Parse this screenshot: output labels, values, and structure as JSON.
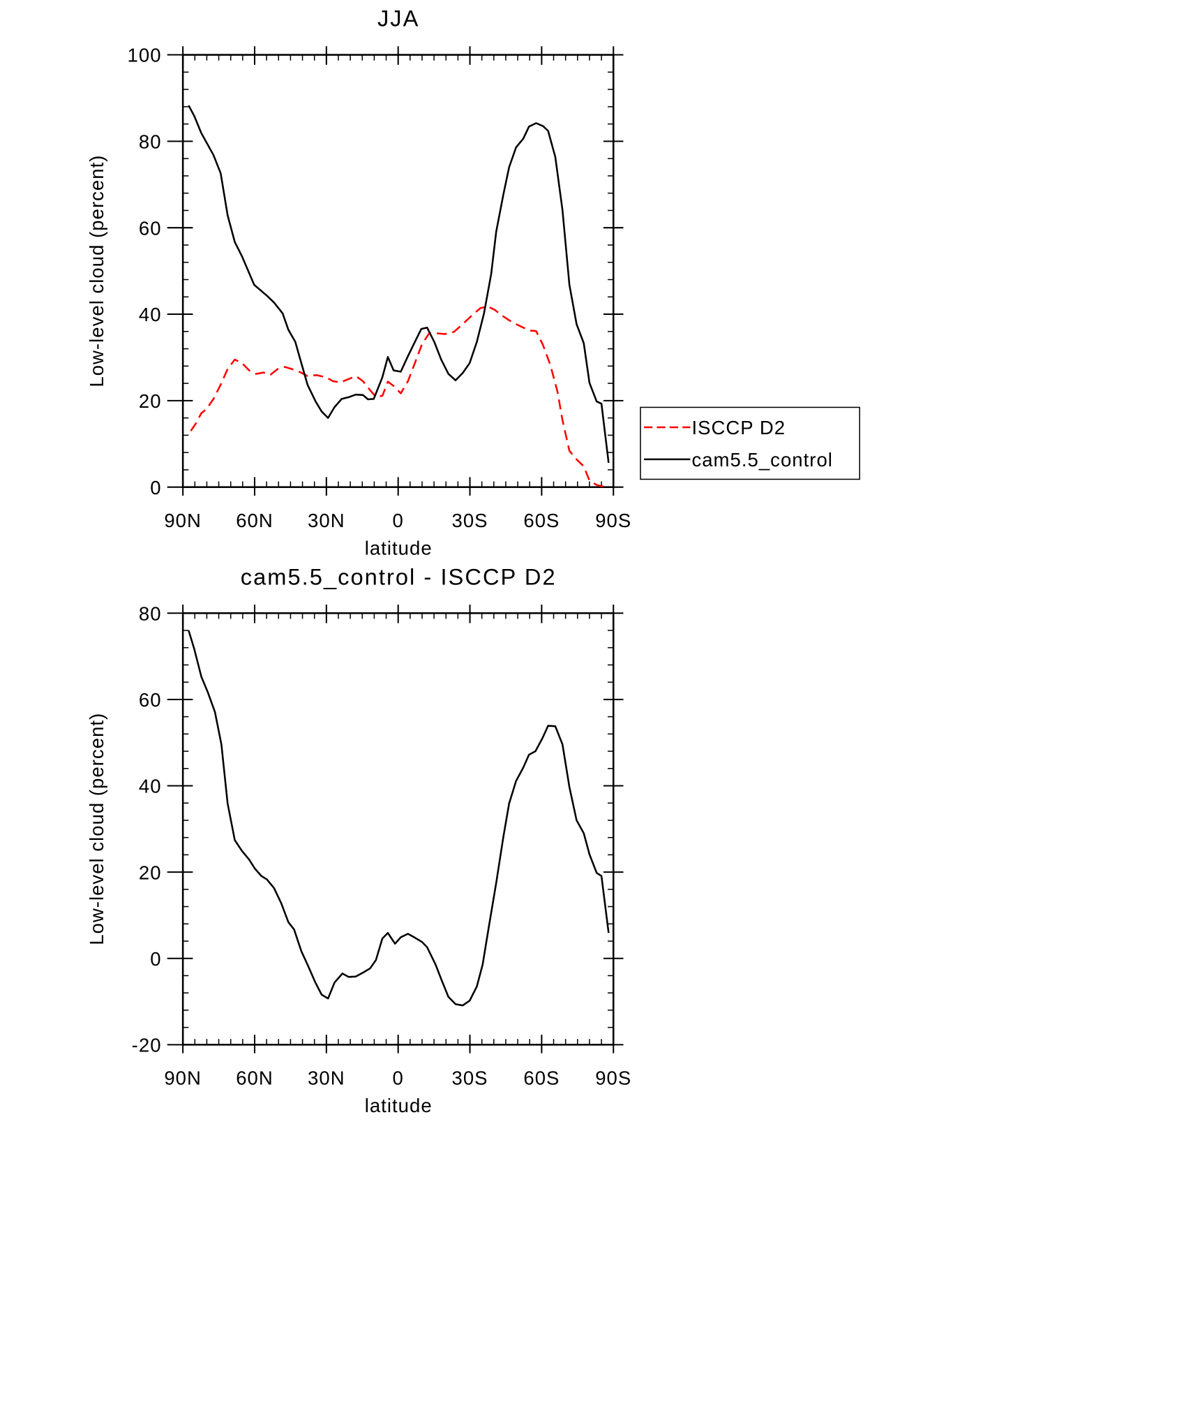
{
  "chart_data": [
    {
      "type": "line",
      "title": "JJA",
      "xlabel": "latitude",
      "ylabel": "Low-level cloud (percent)",
      "xlim": [
        90,
        -90
      ],
      "xticks": [
        {
          "value": 90,
          "label": "90N"
        },
        {
          "value": 60,
          "label": "60N"
        },
        {
          "value": 30,
          "label": "30N"
        },
        0,
        {
          "value": -30,
          "label": "30S"
        },
        {
          "value": -60,
          "label": "60S"
        },
        {
          "value": -90,
          "label": "90S"
        }
      ],
      "ylim": [
        0,
        100
      ],
      "yticks": [
        0,
        20,
        40,
        60,
        80,
        100
      ],
      "legend": "right",
      "series": [
        {
          "name": "ISCCP D2",
          "color": "#ff0000",
          "linestyle": "dashed",
          "x": [
            86.7,
            84.6,
            82.3,
            80.2,
            77.2,
            74.2,
            71.3,
            68.3,
            65.3,
            62.3,
            59.4,
            56.4,
            53.4,
            50.4,
            47.4,
            44.4,
            41.4,
            37.9,
            34.0,
            30.2,
            27.2,
            24.2,
            20.7,
            17.7,
            14.7,
            11.7,
            9.3,
            6.6,
            4.3,
            1.9,
            -1.1,
            -4.1,
            -7.0,
            -10.0,
            -13.0,
            -15.9,
            -19.5,
            -23.3,
            -27.0,
            -30.8,
            -34.4,
            -37.4,
            -40.4,
            -43.4,
            -46.4,
            -49.3,
            -52.3,
            -55.3,
            -57.7,
            -60.6,
            -63.6,
            -66.6,
            -68.7,
            -71.6,
            -74.6,
            -77.6,
            -80.0,
            -83.0,
            -85.0,
            -88.0
          ],
          "values": [
            13.0,
            14.7,
            17.1,
            18.0,
            20.4,
            23.7,
            27.3,
            29.5,
            28.7,
            27.0,
            26.2,
            26.5,
            26.0,
            27.3,
            27.8,
            27.3,
            26.7,
            25.7,
            25.9,
            25.4,
            24.5,
            24.2,
            25.0,
            25.7,
            24.5,
            22.4,
            20.9,
            21.1,
            24.4,
            23.4,
            21.7,
            24.5,
            28.7,
            33.1,
            35.6,
            35.6,
            35.4,
            35.9,
            37.7,
            39.7,
            41.4,
            41.8,
            41.0,
            39.7,
            38.6,
            37.7,
            36.9,
            36.2,
            36.1,
            32.8,
            28.3,
            22.1,
            15.5,
            8.4,
            6.4,
            4.8,
            1.5,
            0.5,
            0.2,
            0.2
          ]
        },
        {
          "name": "cam5.5_control",
          "color": "#000000",
          "linestyle": "solid",
          "x": [
            87.6,
            85.2,
            82.3,
            77.2,
            74.2,
            71.3,
            68.3,
            65.3,
            60.2,
            54.9,
            51.9,
            48.3,
            45.9,
            43.0,
            40.9,
            37.9,
            34.6,
            32.0,
            29.3,
            26.6,
            23.6,
            20.7,
            17.7,
            14.7,
            12.6,
            10.2,
            6.6,
            4.3,
            1.9,
            -1.1,
            -4.1,
            -7.0,
            -9.7,
            -12.1,
            -15.1,
            -18.0,
            -21.0,
            -24.0,
            -27.0,
            -29.9,
            -32.9,
            -35.9,
            -38.9,
            -41.0,
            -44.0,
            -46.4,
            -49.3,
            -52.3,
            -54.7,
            -57.7,
            -60.6,
            -62.7,
            -65.7,
            -68.7,
            -71.6,
            -74.6,
            -77.6,
            -80.0,
            -83.0,
            -85.0,
            -88.0
          ],
          "values": [
            88.3,
            85.8,
            81.9,
            76.8,
            72.6,
            62.9,
            56.7,
            53.4,
            46.8,
            44.3,
            42.7,
            40.2,
            36.4,
            33.6,
            29.5,
            23.7,
            19.9,
            17.5,
            16.0,
            18.5,
            20.4,
            20.8,
            21.4,
            21.3,
            20.3,
            20.4,
            25.4,
            30.1,
            27.0,
            26.7,
            30.3,
            33.6,
            36.6,
            36.9,
            33.6,
            29.5,
            26.2,
            24.7,
            26.4,
            28.7,
            33.6,
            40.2,
            49.3,
            59.1,
            67.7,
            74.0,
            78.6,
            80.6,
            83.4,
            84.2,
            83.5,
            82.4,
            76.4,
            64.1,
            46.8,
            37.7,
            33.3,
            24.1,
            19.8,
            19.3,
            5.6
          ]
        }
      ]
    },
    {
      "type": "line",
      "title": "cam5.5_control - ISCCP D2",
      "xlabel": "latitude",
      "ylabel": "Low-level cloud (percent)",
      "xlim": [
        90,
        -90
      ],
      "xticks": [
        {
          "value": 90,
          "label": "90N"
        },
        {
          "value": 60,
          "label": "60N"
        },
        {
          "value": 30,
          "label": "30N"
        },
        0,
        {
          "value": -30,
          "label": "30S"
        },
        {
          "value": -60,
          "label": "60S"
        },
        {
          "value": -90,
          "label": "90S"
        }
      ],
      "ylim": [
        -20,
        80
      ],
      "yticks": [
        -20,
        0,
        20,
        40,
        60,
        80
      ],
      "series": [
        {
          "color": "#000000",
          "linestyle": "solid",
          "x": [
            87.6,
            85.2,
            82.3,
            79.6,
            76.6,
            73.9,
            71.3,
            68.3,
            65.3,
            62.3,
            59.9,
            57.2,
            54.9,
            51.9,
            48.9,
            45.9,
            43.5,
            40.5,
            37.6,
            34.6,
            32.0,
            29.3,
            26.6,
            23.3,
            20.7,
            17.7,
            14.7,
            11.7,
            9.3,
            6.6,
            4.3,
            1.3,
            -1.1,
            -4.1,
            -7.0,
            -10.0,
            -12.1,
            -15.7,
            -18.0,
            -21.0,
            -24.0,
            -27.0,
            -29.9,
            -32.9,
            -35.3,
            -38.0,
            -41.0,
            -44.0,
            -46.4,
            -49.3,
            -52.3,
            -54.7,
            -57.4,
            -60.3,
            -62.7,
            -65.7,
            -68.7,
            -71.6,
            -74.6,
            -77.6,
            -80.0,
            -83.0,
            -85.0,
            -88.0
          ],
          "values": [
            76.0,
            71.6,
            65.3,
            61.7,
            57.1,
            49.6,
            35.9,
            27.4,
            24.9,
            22.9,
            20.8,
            19.1,
            18.3,
            16.3,
            12.8,
            8.4,
            6.7,
            1.7,
            -1.8,
            -5.6,
            -8.4,
            -9.3,
            -5.6,
            -3.5,
            -4.3,
            -4.2,
            -3.3,
            -2.3,
            -0.4,
            4.6,
            5.9,
            3.4,
            4.9,
            5.7,
            4.8,
            3.8,
            2.6,
            -1.5,
            -4.8,
            -8.9,
            -10.6,
            -10.9,
            -9.8,
            -6.5,
            -1.5,
            7.6,
            17.5,
            28.2,
            35.9,
            41.1,
            44.2,
            47.2,
            48.0,
            51.0,
            53.9,
            53.8,
            49.6,
            39.7,
            32.0,
            29.0,
            24.1,
            19.8,
            19.1,
            5.9
          ]
        }
      ]
    }
  ]
}
